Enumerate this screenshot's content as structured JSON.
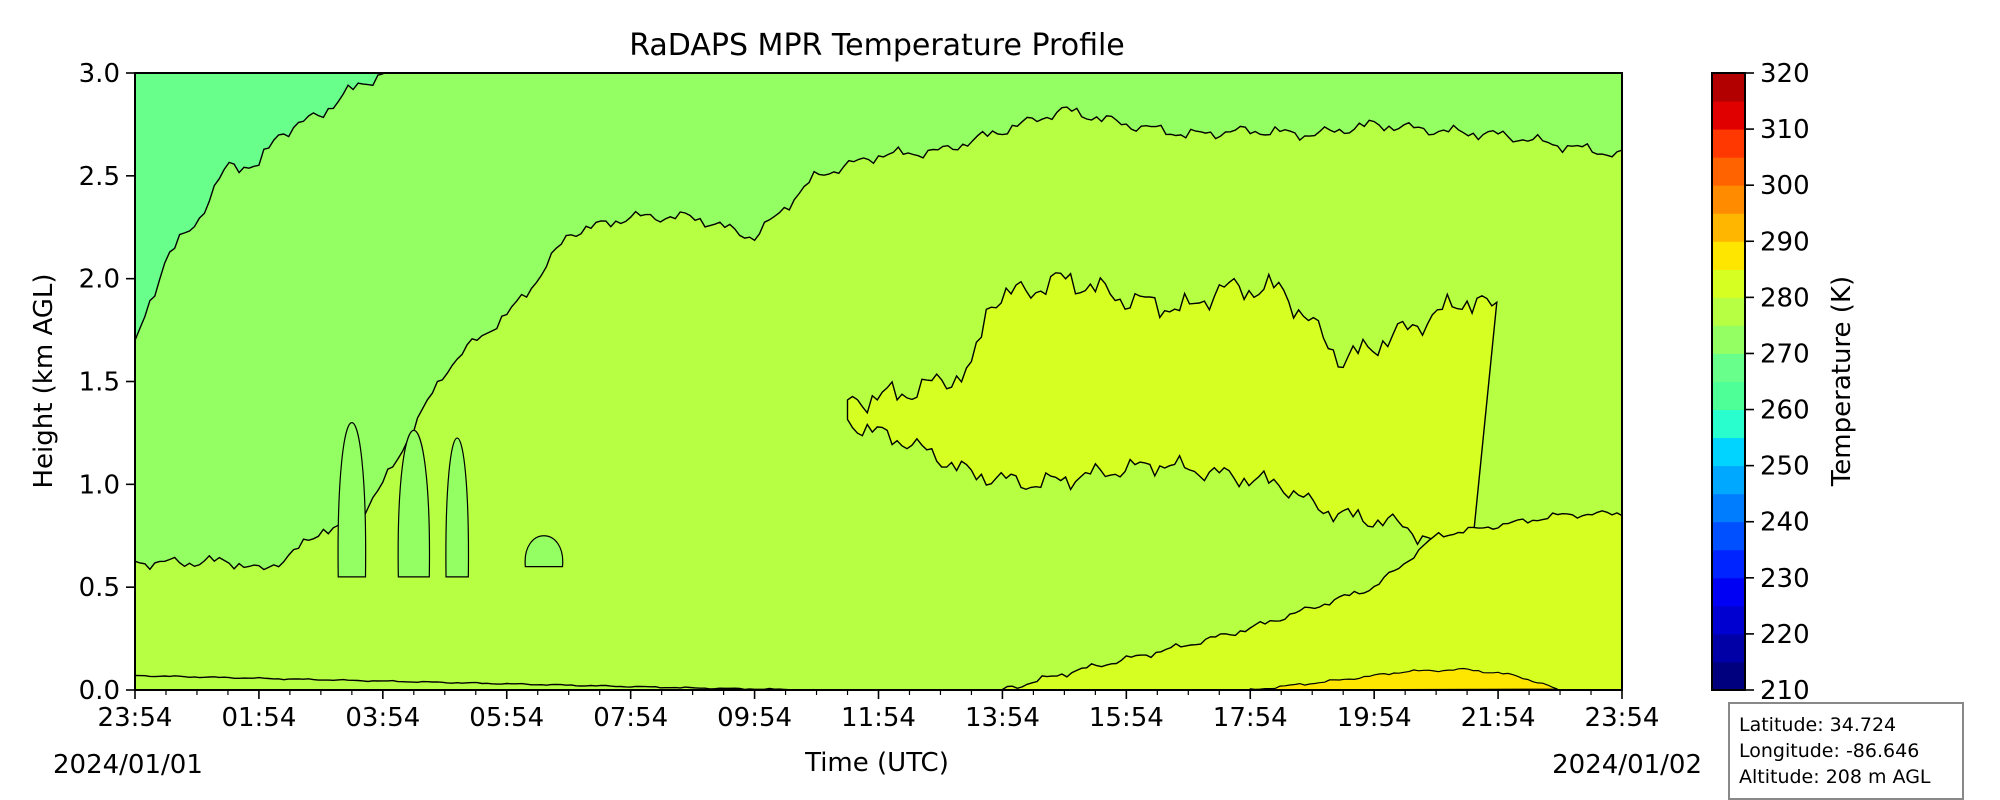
{
  "chart_data": {
    "type": "heatmap",
    "title": "RaDAPS MPR Temperature Profile",
    "xlabel": "Time (UTC)",
    "ylabel": "Height (km AGL)",
    "x_tick_labels": [
      "23:54",
      "01:54",
      "03:54",
      "05:54",
      "07:54",
      "09:54",
      "11:54",
      "13:54",
      "15:54",
      "17:54",
      "19:54",
      "21:54",
      "23:54"
    ],
    "x_start_date": "2024/01/01",
    "x_end_date": "2024/01/02",
    "y_ticks": [
      "0.0",
      "0.5",
      "1.0",
      "1.5",
      "2.0",
      "2.5",
      "3.0"
    ],
    "ylim": [
      0,
      3
    ],
    "colorbar": {
      "label": "Temperature (K)",
      "min": 210,
      "max": 320,
      "step": 5,
      "tick_labels": [
        "210",
        "220",
        "230",
        "240",
        "250",
        "260",
        "270",
        "280",
        "290",
        "300",
        "310",
        "320"
      ],
      "colors": [
        "#00007f",
        "#0000a6",
        "#0000d0",
        "#0000f5",
        "#0024ff",
        "#0050ff",
        "#007cff",
        "#00a8ff",
        "#00d4ff",
        "#29ffce",
        "#4eff98",
        "#68ff8a",
        "#94ff62",
        "#b6ff43",
        "#d6ff22",
        "#ffe600",
        "#ffb600",
        "#ff8c00",
        "#ff6300",
        "#ff3700",
        "#e00000",
        "#b20000"
      ]
    },
    "regions_kelvin": [
      {
        "level_min": 260,
        "level_max": 265,
        "description_color": "#68ff8a"
      },
      {
        "level_min": 265,
        "level_max": 270,
        "description_color": "#94ff62"
      },
      {
        "level_min": 270,
        "level_max": 275,
        "description_color": "#b6ff43"
      },
      {
        "level_min": 275,
        "level_max": 280,
        "description_color": "#d6ff22"
      }
    ],
    "contour_boundaries": {
      "cold_top_265": [
        [
          0,
          1.68
        ],
        [
          0.5,
          2.1
        ],
        [
          1.0,
          2.28
        ],
        [
          1.5,
          2.55
        ],
        [
          2.0,
          2.55
        ],
        [
          2.3,
          2.7
        ],
        [
          3.0,
          2.8
        ],
        [
          3.4,
          2.9
        ],
        [
          4.0,
          3.0
        ]
      ],
      "mid_upper_270": [
        [
          0,
          0.62
        ],
        [
          1.0,
          0.62
        ],
        [
          1.5,
          0.63
        ],
        [
          2.0,
          0.58
        ],
        [
          2.5,
          0.65
        ],
        [
          3.0,
          0.78
        ],
        [
          3.5,
          0.78
        ],
        [
          4.0,
          1.0
        ],
        [
          5.0,
          1.55
        ],
        [
          5.5,
          1.7
        ],
        [
          6.0,
          1.82
        ],
        [
          6.5,
          2.0
        ],
        [
          7.0,
          2.22
        ],
        [
          8.0,
          2.3
        ],
        [
          9.0,
          2.3
        ],
        [
          10.0,
          2.2
        ],
        [
          11.0,
          2.5
        ],
        [
          12.0,
          2.6
        ],
        [
          13.0,
          2.62
        ],
        [
          14.0,
          2.72
        ],
        [
          15.0,
          2.82
        ],
        [
          16.0,
          2.75
        ],
        [
          17.0,
          2.7
        ],
        [
          18.0,
          2.72
        ],
        [
          19.0,
          2.7
        ],
        [
          20.0,
          2.75
        ],
        [
          21.0,
          2.72
        ],
        [
          22.0,
          2.7
        ],
        [
          23.0,
          2.65
        ],
        [
          24.0,
          2.6
        ]
      ],
      "surface_warm_275": [
        [
          0,
          0.07
        ],
        [
          3.0,
          0.05
        ],
        [
          6.0,
          0.03
        ],
        [
          9.0,
          0.01
        ],
        [
          11.0,
          0.0
        ],
        [
          14.0,
          0.0
        ],
        [
          15.0,
          0.08
        ],
        [
          16.0,
          0.15
        ],
        [
          17.0,
          0.22
        ],
        [
          18.0,
          0.3
        ],
        [
          19.0,
          0.4
        ],
        [
          20.0,
          0.5
        ],
        [
          20.5,
          0.62
        ],
        [
          21.0,
          0.75
        ],
        [
          22.0,
          0.8
        ],
        [
          23.0,
          0.85
        ],
        [
          24.0,
          0.86
        ]
      ]
    }
  },
  "info_box": {
    "latitude": "Latitude: 34.724",
    "longitude": "Longitude: -86.646",
    "altitude": "Altitude: 208 m AGL"
  }
}
